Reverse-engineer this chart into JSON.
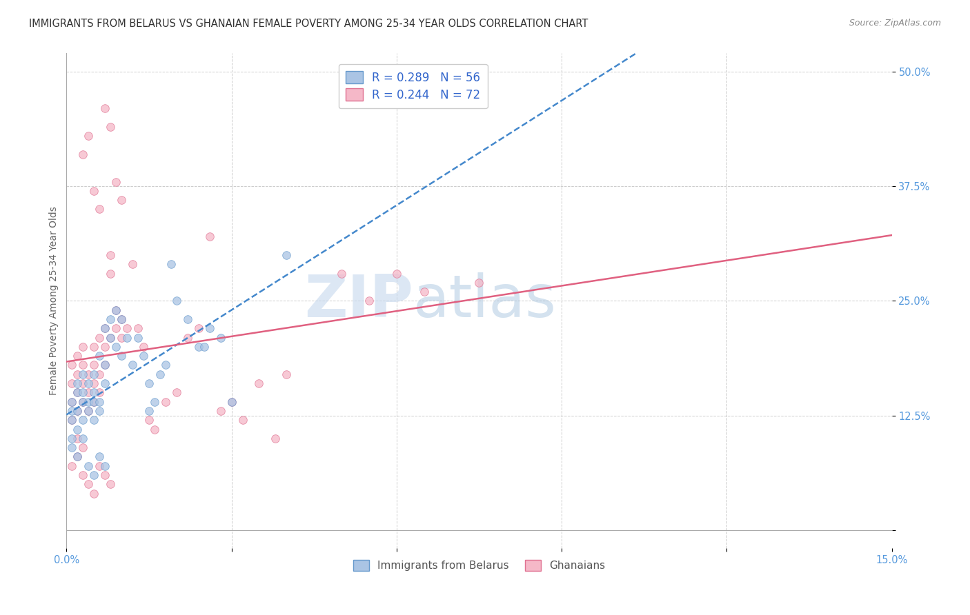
{
  "title": "IMMIGRANTS FROM BELARUS VS GHANAIAN FEMALE POVERTY AMONG 25-34 YEAR OLDS CORRELATION CHART",
  "source": "Source: ZipAtlas.com",
  "ylabel": "Female Poverty Among 25-34 Year Olds",
  "xlim": [
    0.0,
    0.15
  ],
  "ylim": [
    -0.02,
    0.52
  ],
  "watermark_text": "ZIP",
  "watermark_text2": "atlas",
  "legend_entries": [
    {
      "label": "R = 0.289   N = 56"
    },
    {
      "label": "R = 0.244   N = 72"
    }
  ],
  "legend_bottom": [
    "Immigrants from Belarus",
    "Ghanaians"
  ],
  "scatter_blue_color": "#aac4e4",
  "scatter_blue_edge": "#6699cc",
  "scatter_pink_color": "#f5b8c8",
  "scatter_pink_edge": "#e07090",
  "line_blue_color": "#4488cc",
  "line_pink_color": "#e06080",
  "background_color": "#ffffff",
  "grid_color": "#cccccc",
  "tick_color": "#5599dd",
  "title_color": "#333333",
  "source_color": "#888888",
  "ylabel_color": "#666666",
  "blue_x": [
    0.001,
    0.001,
    0.001,
    0.001,
    0.002,
    0.002,
    0.002,
    0.002,
    0.003,
    0.003,
    0.003,
    0.003,
    0.004,
    0.004,
    0.004,
    0.005,
    0.005,
    0.005,
    0.005,
    0.006,
    0.006,
    0.006,
    0.007,
    0.007,
    0.007,
    0.008,
    0.008,
    0.009,
    0.009,
    0.01,
    0.01,
    0.011,
    0.012,
    0.013,
    0.014,
    0.015,
    0.015,
    0.016,
    0.017,
    0.018,
    0.019,
    0.02,
    0.022,
    0.024,
    0.026,
    0.028,
    0.03,
    0.001,
    0.002,
    0.003,
    0.004,
    0.005,
    0.006,
    0.007,
    0.025,
    0.04
  ],
  "blue_y": [
    0.1,
    0.12,
    0.13,
    0.14,
    0.11,
    0.13,
    0.15,
    0.16,
    0.12,
    0.14,
    0.15,
    0.17,
    0.13,
    0.14,
    0.16,
    0.12,
    0.14,
    0.15,
    0.17,
    0.13,
    0.14,
    0.19,
    0.16,
    0.18,
    0.22,
    0.21,
    0.23,
    0.2,
    0.24,
    0.19,
    0.23,
    0.21,
    0.18,
    0.21,
    0.19,
    0.13,
    0.16,
    0.14,
    0.17,
    0.18,
    0.29,
    0.25,
    0.23,
    0.2,
    0.22,
    0.21,
    0.14,
    0.09,
    0.08,
    0.1,
    0.07,
    0.06,
    0.08,
    0.07,
    0.2,
    0.3
  ],
  "pink_x": [
    0.001,
    0.001,
    0.001,
    0.001,
    0.002,
    0.002,
    0.002,
    0.002,
    0.003,
    0.003,
    0.003,
    0.003,
    0.004,
    0.004,
    0.004,
    0.005,
    0.005,
    0.005,
    0.005,
    0.006,
    0.006,
    0.006,
    0.007,
    0.007,
    0.007,
    0.008,
    0.008,
    0.008,
    0.009,
    0.009,
    0.01,
    0.01,
    0.011,
    0.012,
    0.013,
    0.014,
    0.015,
    0.016,
    0.018,
    0.02,
    0.022,
    0.024,
    0.026,
    0.028,
    0.03,
    0.032,
    0.035,
    0.038,
    0.04,
    0.05,
    0.001,
    0.002,
    0.003,
    0.004,
    0.005,
    0.006,
    0.007,
    0.008,
    0.003,
    0.004,
    0.005,
    0.006,
    0.007,
    0.008,
    0.009,
    0.01,
    0.06,
    0.055,
    0.075,
    0.065,
    0.002,
    0.003
  ],
  "pink_y": [
    0.12,
    0.14,
    0.16,
    0.18,
    0.13,
    0.15,
    0.17,
    0.19,
    0.14,
    0.16,
    0.18,
    0.2,
    0.13,
    0.15,
    0.17,
    0.14,
    0.16,
    0.18,
    0.2,
    0.15,
    0.21,
    0.17,
    0.18,
    0.2,
    0.22,
    0.21,
    0.3,
    0.28,
    0.22,
    0.24,
    0.21,
    0.23,
    0.22,
    0.29,
    0.22,
    0.2,
    0.12,
    0.11,
    0.14,
    0.15,
    0.21,
    0.22,
    0.32,
    0.13,
    0.14,
    0.12,
    0.16,
    0.1,
    0.17,
    0.28,
    0.07,
    0.08,
    0.06,
    0.05,
    0.04,
    0.07,
    0.06,
    0.05,
    0.41,
    0.43,
    0.37,
    0.35,
    0.46,
    0.44,
    0.38,
    0.36,
    0.28,
    0.25,
    0.27,
    0.26,
    0.1,
    0.09
  ]
}
